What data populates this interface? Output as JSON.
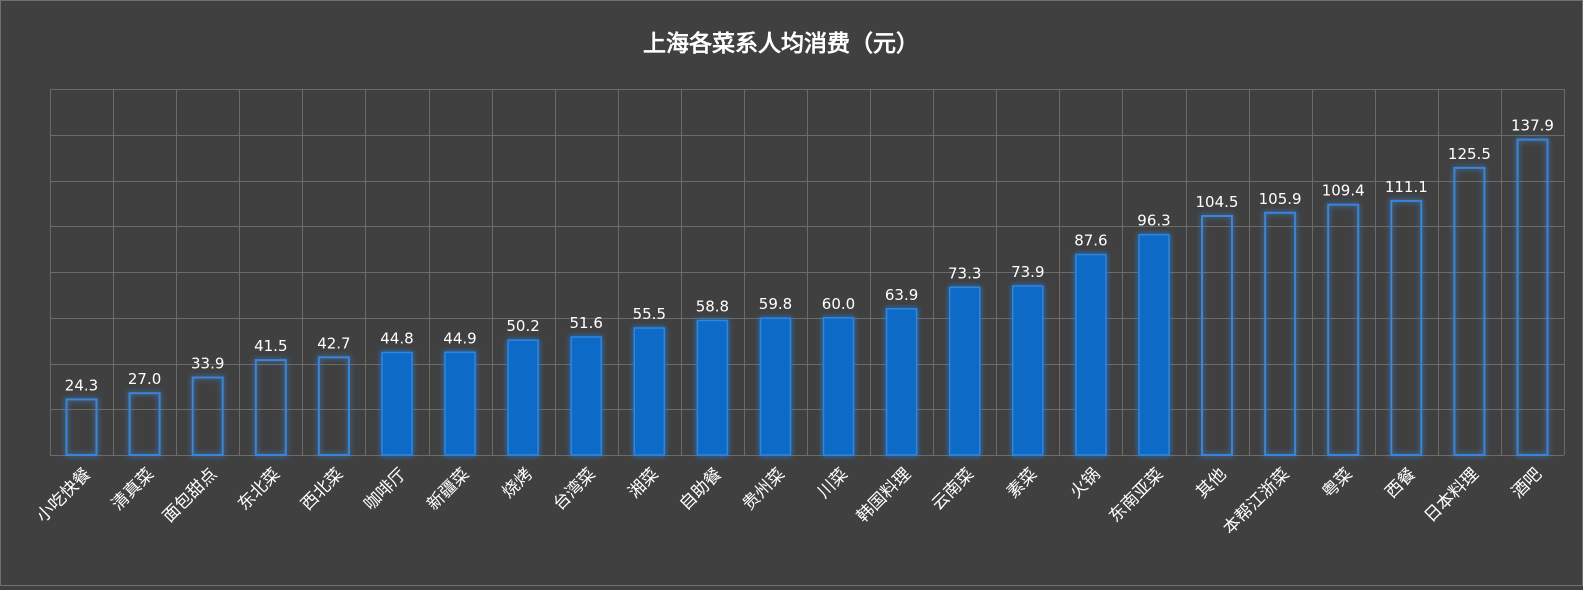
{
  "chart_data": {
    "type": "bar",
    "title": "上海各菜系人均消费（元）",
    "categories": [
      "小吃快餐",
      "清真菜",
      "面包甜点",
      "东北菜",
      "西北菜",
      "咖啡厅",
      "新疆菜",
      "烧烤",
      "台湾菜",
      "湘菜",
      "自助餐",
      "贵州菜",
      "川菜",
      "韩国料理",
      "云南菜",
      "素菜",
      "火锅",
      "东南亚菜",
      "其他",
      "本帮江浙菜",
      "粤菜",
      "西餐",
      "日本料理",
      "酒吧"
    ],
    "values": [
      24.3,
      27.0,
      33.9,
      41.5,
      42.7,
      44.8,
      44.9,
      50.2,
      51.6,
      55.5,
      58.8,
      59.8,
      60.0,
      63.9,
      73.3,
      73.9,
      87.6,
      96.3,
      104.5,
      105.9,
      109.4,
      111.1,
      125.5,
      137.9
    ],
    "value_labels": [
      "24.3",
      "27.0",
      "33.9",
      "41.5",
      "42.7",
      "44.8",
      "44.9",
      "50.2",
      "51.6",
      "55.5",
      "58.8",
      "59.8",
      "60.0",
      "63.9",
      "73.3",
      "73.9",
      "87.6",
      "96.3",
      "104.5",
      "105.9",
      "109.4",
      "111.1",
      "125.5",
      "137.9"
    ],
    "bar_style": [
      "outline",
      "outline",
      "outline",
      "outline",
      "outline",
      "solid",
      "solid",
      "solid",
      "solid",
      "solid",
      "solid",
      "solid",
      "solid",
      "solid",
      "solid",
      "solid",
      "solid",
      "solid",
      "outline",
      "outline",
      "outline",
      "outline",
      "outline",
      "outline"
    ],
    "xlabel": "",
    "ylabel": "",
    "ylim": [
      0,
      160
    ],
    "grid": true,
    "legend": "none",
    "colors": {
      "background": "#404040",
      "grid": "#6b6b6b",
      "bar_fill": "#0a6ac6",
      "bar_outline": "#3a84d6",
      "text": "#ffffff"
    }
  }
}
